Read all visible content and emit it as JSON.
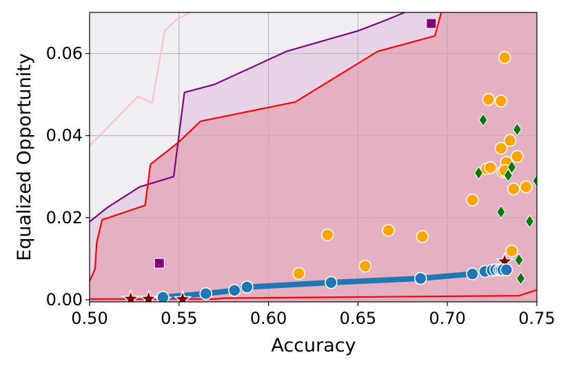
{
  "chart_data": {
    "type": "scatter",
    "xlabel": "Accuracy",
    "ylabel": "Equalized Opportunity",
    "xlim": [
      0.5,
      0.75
    ],
    "ylim": [
      -0.0005,
      0.07
    ],
    "xticks": [
      0.5,
      0.55,
      0.6,
      0.65,
      0.7,
      0.75
    ],
    "xtick_labels": [
      "0.50",
      "0.55",
      "0.60",
      "0.65",
      "0.70",
      "0.75"
    ],
    "yticks": [
      0.0,
      0.02,
      0.04,
      0.06
    ],
    "ytick_labels": [
      "0.00",
      "0.02",
      "0.04",
      "0.06"
    ],
    "grid": true,
    "regions": [
      {
        "fill": "#eaf6fb",
        "edge": "#ffc0cb",
        "points": [
          [
            0.5,
            0.0375
          ],
          [
            0.509,
            0.0415
          ],
          [
            0.518,
            0.0455
          ],
          [
            0.527,
            0.0495
          ],
          [
            0.535,
            0.048
          ],
          [
            0.542,
            0.0655
          ],
          [
            0.548,
            0.068
          ],
          [
            0.556,
            0.07
          ]
        ]
      },
      {
        "fill": "#f1eef3",
        "edge": "",
        "points": [
          [
            0.5,
            0.07
          ],
          [
            0.556,
            0.07
          ],
          [
            0.75,
            0.07
          ],
          [
            0.75,
            0.0
          ],
          [
            0.5,
            0.0
          ]
        ]
      },
      {
        "fill": "#e6d3e6",
        "edge": "#800080",
        "points": [
          [
            0.5,
            0.019
          ],
          [
            0.51,
            0.0225
          ],
          [
            0.528,
            0.0275
          ],
          [
            0.547,
            0.03
          ],
          [
            0.553,
            0.0505
          ],
          [
            0.57,
            0.0525
          ],
          [
            0.61,
            0.0605
          ],
          [
            0.65,
            0.0655
          ],
          [
            0.665,
            0.068
          ],
          [
            0.69,
            0.0725
          ]
        ]
      },
      {
        "fill": "#e5b0c1",
        "edge": "#ff0000",
        "points": [
          [
            0.5,
            0.0045
          ],
          [
            0.503,
            0.0075
          ],
          [
            0.504,
            0.014
          ],
          [
            0.507,
            0.0195
          ],
          [
            0.531,
            0.023
          ],
          [
            0.534,
            0.033
          ],
          [
            0.55,
            0.0385
          ],
          [
            0.562,
            0.0435
          ],
          [
            0.615,
            0.0482
          ],
          [
            0.661,
            0.0605
          ],
          [
            0.693,
            0.0643
          ],
          [
            0.698,
            0.0722
          ]
        ]
      }
    ],
    "bottom_line": {
      "color": "#ff0000",
      "points": [
        [
          0.5,
          0.0002
        ],
        [
          0.57,
          0.0002
        ],
        [
          0.575,
          0.0004
        ],
        [
          0.74,
          0.001
        ],
        [
          0.75,
          0.0024
        ]
      ]
    },
    "frontier_line": {
      "color": "#1f77b4",
      "points": [
        [
          0.541,
          0.0006
        ],
        [
          0.565,
          0.0015
        ],
        [
          0.581,
          0.0023
        ],
        [
          0.588,
          0.0031
        ],
        [
          0.635,
          0.0042
        ],
        [
          0.685,
          0.0052
        ],
        [
          0.714,
          0.0063
        ],
        [
          0.721,
          0.0069
        ],
        [
          0.725,
          0.0072
        ],
        [
          0.727,
          0.0073
        ],
        [
          0.729,
          0.0073
        ],
        [
          0.73,
          0.0073
        ],
        [
          0.731,
          0.0073
        ],
        [
          0.733,
          0.0073
        ]
      ]
    },
    "series": [
      {
        "marker": "circle",
        "color": "#1f77b4",
        "x": [
          0.541,
          0.565,
          0.581,
          0.588,
          0.635,
          0.685,
          0.714,
          0.721,
          0.725,
          0.727,
          0.729,
          0.73,
          0.731,
          0.733
        ],
        "y": [
          0.0006,
          0.0015,
          0.0023,
          0.0031,
          0.0042,
          0.0052,
          0.0063,
          0.0069,
          0.0072,
          0.0073,
          0.0073,
          0.0073,
          0.0073,
          0.0073
        ]
      },
      {
        "marker": "circle",
        "color": "#ffa500",
        "x": [
          0.617,
          0.633,
          0.654,
          0.667,
          0.686,
          0.714,
          0.722,
          0.723,
          0.73,
          0.73,
          0.731,
          0.732,
          0.733,
          0.735,
          0.736,
          0.737,
          0.739,
          0.744,
          0.732,
          0.724
        ],
        "y": [
          0.0064,
          0.0158,
          0.0082,
          0.0169,
          0.0154,
          0.0243,
          0.0319,
          0.0488,
          0.0484,
          0.0369,
          0.0312,
          0.059,
          0.0335,
          0.0388,
          0.0119,
          0.027,
          0.0349,
          0.0275,
          0.0315,
          0.0322
        ]
      },
      {
        "marker": "diamond",
        "color": "#007a00",
        "x": [
          0.72,
          0.7175,
          0.739,
          0.736,
          0.734,
          0.73,
          0.74,
          0.741,
          0.746,
          0.75
        ],
        "y": [
          0.0438,
          0.0309,
          0.0415,
          0.0323,
          0.0303,
          0.0214,
          0.0097,
          0.0052,
          0.0191,
          0.029
        ]
      },
      {
        "marker": "square",
        "color": "#800080",
        "x": [
          0.539,
          0.691
        ],
        "y": [
          0.0089,
          0.0673
        ]
      },
      {
        "marker": "star",
        "color": "#7a0000",
        "x": [
          0.523,
          0.533,
          0.541,
          0.552,
          0.732
        ],
        "y": [
          0.0002,
          0.0002,
          0.0,
          0.0001,
          0.0093
        ]
      }
    ]
  }
}
